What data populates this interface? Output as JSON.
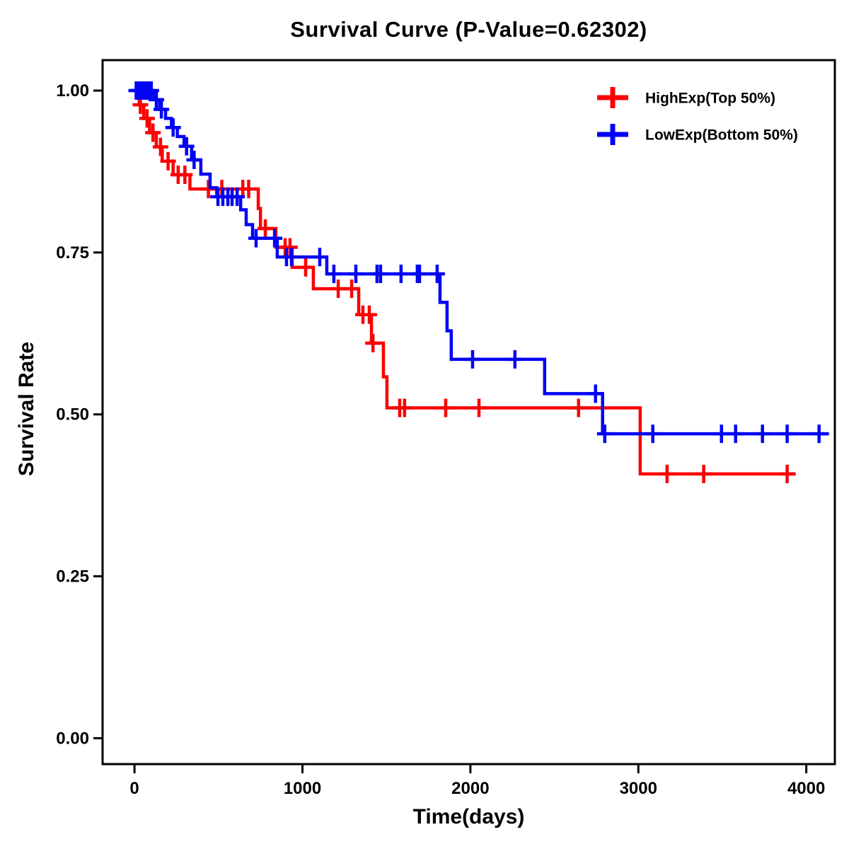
{
  "chart_data": {
    "type": "line",
    "subtype": "kaplan-meier-step",
    "title": "Survival Curve (P-Value=0.62302)",
    "xlabel": "Time(days)",
    "ylabel": "Survival Rate",
    "xlim": [
      -190,
      4170
    ],
    "ylim": [
      -0.04,
      1.047
    ],
    "grid": false,
    "legend_position": "top-right",
    "background": "#ffffff",
    "axis_color": "#000000",
    "xticks": {
      "values": [
        0,
        1000,
        2000,
        3000,
        4000
      ],
      "labels": [
        "0",
        "1000",
        "2000",
        "3000",
        "4000"
      ]
    },
    "yticks": {
      "values": [
        0.0,
        0.25,
        0.5,
        0.75,
        1.0
      ],
      "labels": [
        "0.00",
        "0.25",
        "0.50",
        "0.75",
        "1.00"
      ]
    },
    "series": [
      {
        "name": "HighExp(Top 50%)",
        "color": "#fa0000",
        "end_time": 3937,
        "steps": [
          [
            0,
            1.0
          ],
          [
            28,
            0.978
          ],
          [
            55,
            0.957
          ],
          [
            90,
            0.935
          ],
          [
            130,
            0.913
          ],
          [
            165,
            0.891
          ],
          [
            230,
            0.87
          ],
          [
            330,
            0.848
          ],
          [
            737,
            0.818
          ],
          [
            750,
            0.787
          ],
          [
            842,
            0.758
          ],
          [
            939,
            0.727
          ],
          [
            1065,
            0.694
          ],
          [
            1335,
            0.654
          ],
          [
            1411,
            0.61
          ],
          [
            1482,
            0.558
          ],
          [
            1503,
            0.51
          ],
          [
            3011,
            0.408
          ]
        ],
        "censors": [
          [
            35,
            0.978
          ],
          [
            75,
            0.957
          ],
          [
            110,
            0.935
          ],
          [
            155,
            0.913
          ],
          [
            200,
            0.891
          ],
          [
            260,
            0.87
          ],
          [
            300,
            0.87
          ],
          [
            440,
            0.848
          ],
          [
            520,
            0.848
          ],
          [
            645,
            0.848
          ],
          [
            680,
            0.848
          ],
          [
            779,
            0.787
          ],
          [
            897,
            0.758
          ],
          [
            926,
            0.758
          ],
          [
            1019,
            0.727
          ],
          [
            1213,
            0.694
          ],
          [
            1293,
            0.694
          ],
          [
            1360,
            0.654
          ],
          [
            1398,
            0.654
          ],
          [
            1420,
            0.61
          ],
          [
            1579,
            0.51
          ],
          [
            1608,
            0.51
          ],
          [
            1853,
            0.51
          ],
          [
            2051,
            0.51
          ],
          [
            2644,
            0.51
          ],
          [
            3171,
            0.408
          ],
          [
            3389,
            0.408
          ],
          [
            3886,
            0.408
          ]
        ]
      },
      {
        "name": "LowExp(Bottom 50%)",
        "color": "#0202f5",
        "end_time": 4135,
        "steps": [
          [
            0,
            1.0
          ],
          [
            115,
            0.986
          ],
          [
            150,
            0.971
          ],
          [
            185,
            0.957
          ],
          [
            220,
            0.943
          ],
          [
            255,
            0.929
          ],
          [
            295,
            0.914
          ],
          [
            340,
            0.893
          ],
          [
            395,
            0.871
          ],
          [
            450,
            0.85
          ],
          [
            490,
            0.836
          ],
          [
            632,
            0.816
          ],
          [
            665,
            0.793
          ],
          [
            703,
            0.772
          ],
          [
            850,
            0.743
          ],
          [
            1145,
            0.717
          ],
          [
            1819,
            0.673
          ],
          [
            1861,
            0.629
          ],
          [
            1886,
            0.585
          ],
          [
            2442,
            0.532
          ],
          [
            2787,
            0.47
          ]
        ],
        "censors": [
          [
            10,
            1.0
          ],
          [
            25,
            1.0
          ],
          [
            40,
            1.0
          ],
          [
            55,
            1.0
          ],
          [
            70,
            1.0
          ],
          [
            85,
            1.0
          ],
          [
            100,
            1.0
          ],
          [
            130,
            0.986
          ],
          [
            160,
            0.971
          ],
          [
            230,
            0.943
          ],
          [
            310,
            0.914
          ],
          [
            355,
            0.893
          ],
          [
            497,
            0.836
          ],
          [
            526,
            0.836
          ],
          [
            556,
            0.836
          ],
          [
            581,
            0.836
          ],
          [
            611,
            0.836
          ],
          [
            724,
            0.772
          ],
          [
            834,
            0.772
          ],
          [
            905,
            0.743
          ],
          [
            935,
            0.743
          ],
          [
            1103,
            0.743
          ],
          [
            1187,
            0.717
          ],
          [
            1318,
            0.717
          ],
          [
            1444,
            0.717
          ],
          [
            1465,
            0.717
          ],
          [
            1587,
            0.717
          ],
          [
            1684,
            0.717
          ],
          [
            1697,
            0.717
          ],
          [
            1802,
            0.717
          ],
          [
            2013,
            0.585
          ],
          [
            2265,
            0.585
          ],
          [
            2745,
            0.532
          ],
          [
            2800,
            0.47
          ],
          [
            3086,
            0.47
          ],
          [
            3495,
            0.47
          ],
          [
            3579,
            0.47
          ],
          [
            3739,
            0.47
          ],
          [
            3886,
            0.47
          ],
          [
            4076,
            0.47
          ]
        ]
      }
    ]
  }
}
